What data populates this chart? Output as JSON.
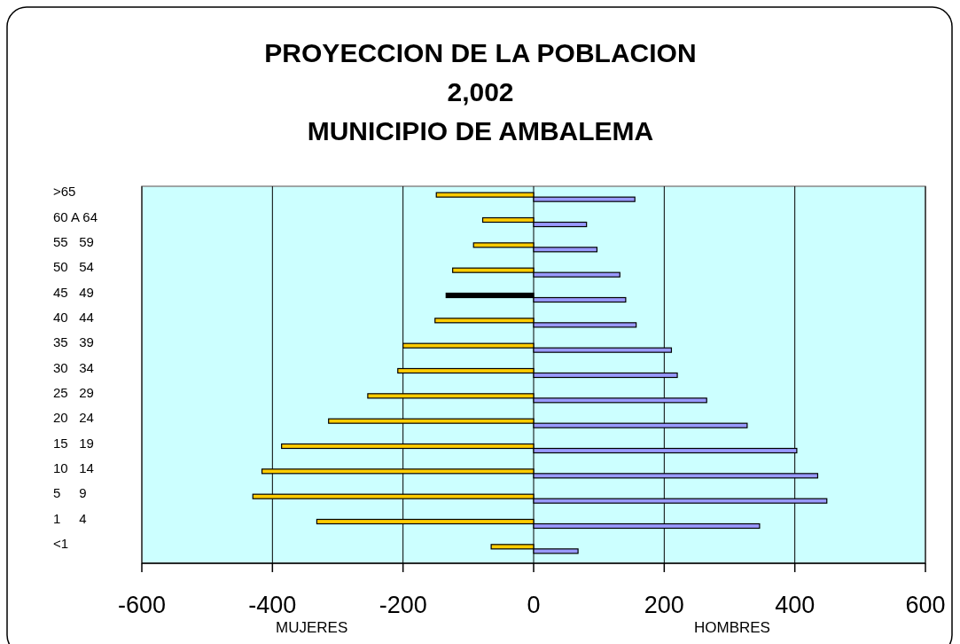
{
  "chart_data": {
    "type": "bar",
    "orientation": "horizontal",
    "title": "PROYECCION DE LA POBLACION\n2,002\nMUNICIPIO DE AMBALEMA",
    "categories": [
      ">65",
      "60 A 64",
      "55   59",
      "50   54",
      "45   49",
      "40   44",
      "35   39",
      "30   34",
      "25   29",
      "20   24",
      "15   19",
      "10   14",
      "5     9",
      "1     4",
      "<1"
    ],
    "series": [
      {
        "colors": [
          "#ffcc00",
          "#ffcc00",
          "#ffcc00",
          "#ffcc00",
          "#000000",
          "#ffcc00",
          "#ffcc00",
          "#ffcc00",
          "#ffcc00",
          "#ffcc00",
          "#ffcc00",
          "#ffcc00",
          "#ffcc00",
          "#ffcc00",
          "#ffcc00"
        ],
        "values": [
          -149,
          -78,
          -92,
          -124,
          -134,
          -151,
          -200,
          -208,
          -254,
          -314,
          -386,
          -416,
          -430,
          -332,
          -65
        ]
      },
      {
        "color": "#9999ff",
        "values": [
          155,
          81,
          97,
          132,
          141,
          157,
          211,
          220,
          265,
          327,
          403,
          435,
          449,
          346,
          68
        ]
      }
    ],
    "xlim": [
      -600,
      600
    ],
    "xticks": [
      -600,
      -400,
      -200,
      0,
      200,
      400,
      600
    ],
    "grid": "x",
    "annotations": [
      "MUJERES",
      "HOMBRES"
    ]
  }
}
